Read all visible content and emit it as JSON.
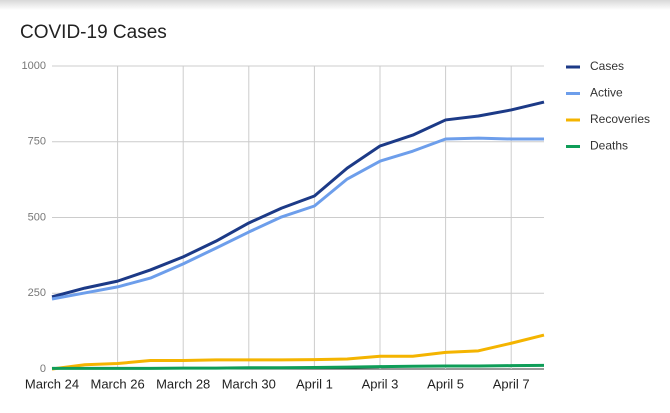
{
  "chart_data": {
    "type": "line",
    "title": "COVID-19 Cases",
    "categories": [
      "March 24",
      null,
      "March 26",
      null,
      "March 28",
      null,
      "March 30",
      null,
      "April 1",
      null,
      "April 3",
      null,
      "April 5",
      null,
      "April 7",
      null
    ],
    "series": [
      {
        "name": "Cases",
        "color": "#1c3a87",
        "values": [
          238,
          267,
          290,
          327,
          370,
          422,
          482,
          531,
          571,
          663,
          736,
          772,
          822,
          835,
          855,
          881
        ]
      },
      {
        "name": "Active",
        "color": "#6d9eeb",
        "values": [
          231,
          251,
          271,
          300,
          347,
          399,
          452,
          502,
          538,
          627,
          686,
          719,
          759,
          762,
          759,
          759
        ]
      },
      {
        "name": "Recoveries",
        "color": "#f4b400",
        "values": [
          0,
          14,
          18,
          28,
          28,
          30,
          30,
          30,
          31,
          33,
          42,
          42,
          55,
          60,
          85,
          112
        ]
      },
      {
        "name": "Deaths",
        "color": "#0f9d58",
        "values": [
          2,
          2,
          2,
          2,
          3,
          3,
          4,
          4,
          5,
          6,
          8,
          9,
          10,
          10,
          11,
          12
        ]
      }
    ],
    "ylim": [
      0,
      1000
    ],
    "yticks": [
      0,
      250,
      500,
      750,
      1000
    ],
    "grid": true,
    "legend": "right"
  }
}
